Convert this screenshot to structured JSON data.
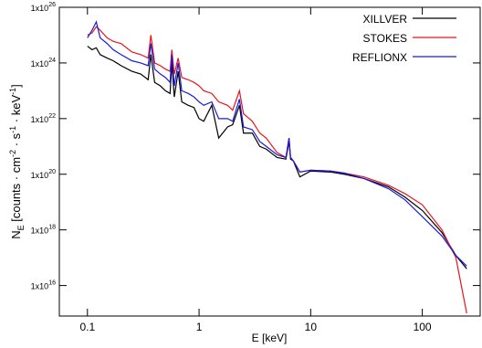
{
  "chart_data": {
    "type": "line",
    "x_label": "E [keV]",
    "y_label": [
      "N",
      "E",
      " [counts · cm",
      "-2",
      " · s",
      "-1",
      " · keV",
      "-1",
      "]"
    ],
    "x_log": true,
    "y_log": true,
    "legend": "upper right",
    "xlim": [
      0.056,
      330
    ],
    "ylim": [
      800000000000000.0,
      1e+26
    ],
    "xticks": [
      0.1,
      1,
      10,
      100
    ],
    "yticks": [
      {
        "value": 1e+26,
        "label": "1x10",
        "exponent": "26"
      },
      {
        "value": 1e+24,
        "label": "1x10",
        "exponent": "24"
      },
      {
        "value": 1e+22,
        "label": "1x10",
        "exponent": "22"
      },
      {
        "value": 1e+20,
        "label": "1x10",
        "exponent": "20"
      },
      {
        "value": 1e+18,
        "label": "1x10",
        "exponent": "18"
      },
      {
        "value": 1e+16,
        "label": "1x10",
        "exponent": "16"
      }
    ],
    "x": [
      0.1,
      0.11,
      0.12,
      0.13,
      0.15,
      0.17,
      0.2,
      0.25,
      0.3,
      0.35,
      0.37,
      0.4,
      0.45,
      0.5,
      0.55,
      0.57,
      0.6,
      0.65,
      0.7,
      0.8,
      0.9,
      1.0,
      1.1,
      1.3,
      1.5,
      1.8,
      2.0,
      2.3,
      2.5,
      3,
      3.5,
      4,
      5,
      6,
      6.4,
      6.6,
      7,
      8,
      10,
      15,
      20,
      30,
      50,
      70,
      100,
      150,
      200,
      250
    ],
    "series": [
      {
        "name": "XILLVER",
        "color": "#000000",
        "values": [
          4e+24,
          3e+24,
          3.5e+24,
          2e+24,
          1.5e+24,
          1.2e+24,
          8e+23,
          5e+23,
          4e+23,
          2.5e+23,
          2e+24,
          2e+23,
          1.5e+23,
          1e+23,
          8e+22,
          1e+24,
          6e+22,
          5e+23,
          4e+22,
          3e+22,
          2.5e+22,
          1e+22,
          8e+21,
          3e+22,
          2e+21,
          5e+21,
          6e+21,
          3e+22,
          3e+21,
          3e+21,
          1e+21,
          8e+20,
          4e+20,
          3.5e+20,
          1.5e+21,
          3.5e+20,
          3e+20,
          8e+19,
          1.3e+20,
          1.2e+20,
          1e+20,
          7e+19,
          3.5e+19,
          1.5e+19,
          5e+18,
          8e+17,
          1.2e+17,
          4e+16
        ]
      },
      {
        "name": "STOKES",
        "color": "#e8141b",
        "values": [
          1e+25,
          1.2e+25,
          2e+25,
          1.5e+25,
          8e+24,
          6e+24,
          5e+24,
          2.5e+24,
          2e+24,
          1.5e+24,
          1e+25,
          1e+24,
          8e+23,
          6e+23,
          5e+23,
          3e+24,
          4e+23,
          1.5e+24,
          3e+23,
          2.5e+23,
          2e+23,
          1.5e+23,
          1e+23,
          8e+22,
          4e+22,
          3e+22,
          2e+22,
          1e+23,
          1.5e+22,
          8e+21,
          3e+21,
          2e+21,
          6e+20,
          4e+20,
          2e+21,
          4e+20,
          3e+20,
          1.2e+20,
          1.4e+20,
          1.3e+20,
          1.1e+20,
          8e+19,
          4e+19,
          2e+19,
          8e+18,
          1e+18,
          1e+17,
          1000000000000000.0
        ]
      },
      {
        "name": "REFLIONX",
        "color": "#1a1adf",
        "values": [
          8e+24,
          1.5e+25,
          3e+25,
          8e+24,
          5e+24,
          3e+24,
          2e+24,
          1.2e+24,
          1e+24,
          8e+23,
          5e+24,
          6e+23,
          4e+23,
          3e+23,
          2e+23,
          2e+24,
          1.5e+23,
          1e+24,
          1e+23,
          8e+22,
          6e+22,
          4e+22,
          3e+22,
          4e+22,
          1e+22,
          1e+22,
          8e+21,
          5e+22,
          5e+21,
          4e+21,
          1.5e+21,
          1e+21,
          5e+20,
          4e+20,
          2e+21,
          4e+20,
          3e+20,
          1.2e+20,
          1.4e+20,
          1.3e+20,
          1.1e+20,
          7e+19,
          3e+19,
          1.2e+19,
          3e+18,
          6e+17,
          1.2e+17,
          5e+16
        ]
      }
    ]
  }
}
